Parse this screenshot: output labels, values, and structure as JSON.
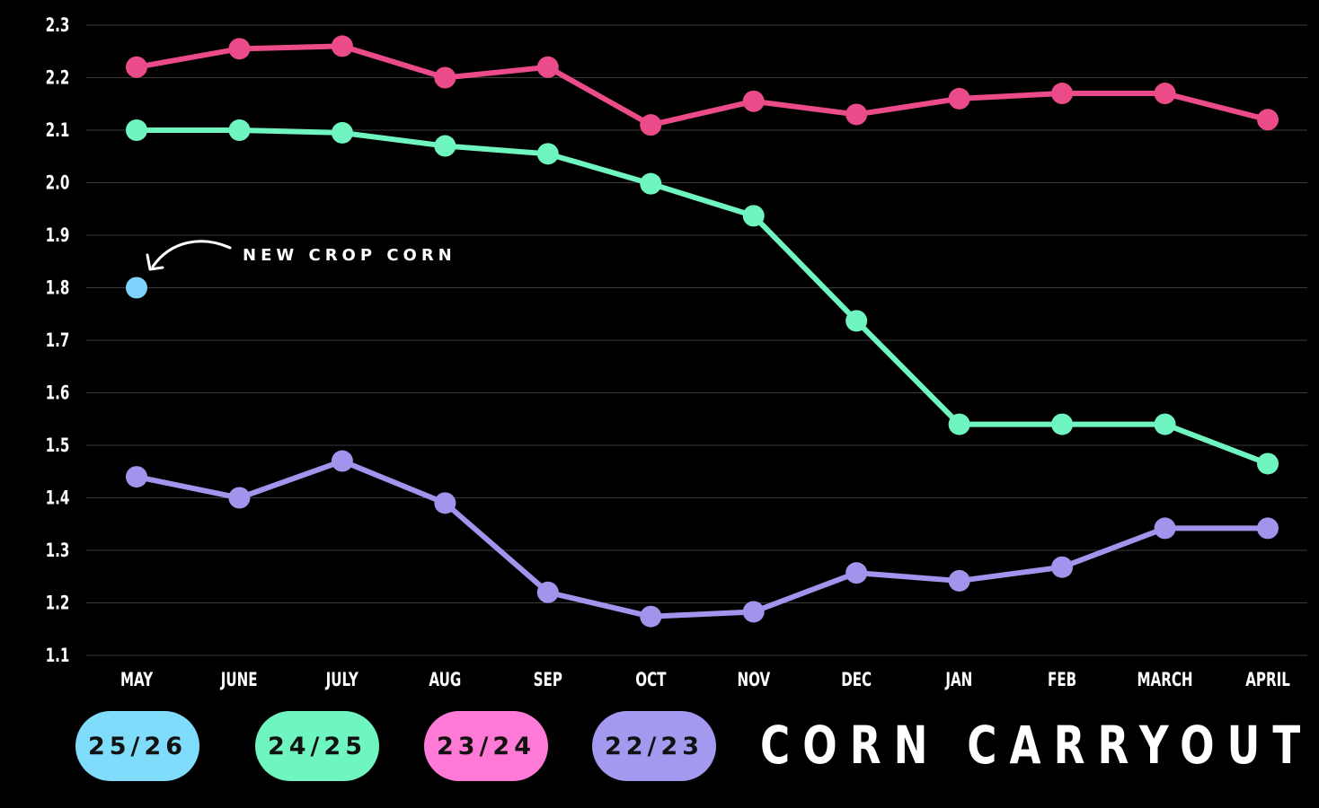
{
  "chart_data": {
    "type": "line",
    "title": "CORN CARRYOUT",
    "xlabel": "",
    "ylabel": "",
    "categories": [
      "MAY",
      "JUNE",
      "JULY",
      "AUG",
      "SEP",
      "OCT",
      "NOV",
      "DEC",
      "JAN",
      "FEB",
      "MARCH",
      "APRIL"
    ],
    "yticks": [
      "1.1",
      "1.2",
      "1.3",
      "1.4",
      "1.5",
      "1.6",
      "1.7",
      "1.8",
      "1.9",
      "2.0",
      "2.1",
      "2.2",
      "2.3"
    ],
    "ylim": [
      1.1,
      2.3
    ],
    "grid": true,
    "legend_position": "bottom",
    "series": [
      {
        "name": "25/26",
        "color": "#7dd3fc",
        "values": [
          1.8,
          null,
          null,
          null,
          null,
          null,
          null,
          null,
          null,
          null,
          null,
          null
        ]
      },
      {
        "name": "24/25",
        "color": "#6ff5c0",
        "values": [
          2.1,
          2.1,
          2.095,
          2.07,
          2.055,
          1.998,
          1.937,
          1.737,
          1.54,
          1.54,
          1.54,
          1.465
        ]
      },
      {
        "name": "23/24",
        "color": "#ec4b8a",
        "values": [
          2.22,
          2.255,
          2.26,
          2.2,
          2.22,
          2.11,
          2.155,
          2.13,
          2.16,
          2.17,
          2.17,
          2.12
        ]
      },
      {
        "name": "22/23",
        "color": "#a293ec",
        "values": [
          1.44,
          1.4,
          1.47,
          1.39,
          1.22,
          1.174,
          1.183,
          1.257,
          1.242,
          1.268,
          1.342,
          1.342
        ]
      }
    ],
    "annotations": [
      {
        "text": "NEW CROP CORN",
        "points_to": {
          "category": "MAY",
          "value": 1.8
        }
      }
    ]
  },
  "legend": {
    "items": [
      {
        "label": "25/26",
        "color": "#7fdcfb"
      },
      {
        "label": "24/25",
        "color": "#6ff5bf"
      },
      {
        "label": "23/24",
        "color": "#ff7ad6"
      },
      {
        "label": "22/23",
        "color": "#a39af0"
      }
    ]
  },
  "colors": {
    "background": "#000000",
    "grid": "#3a3a3a",
    "text": "#ffffff"
  }
}
